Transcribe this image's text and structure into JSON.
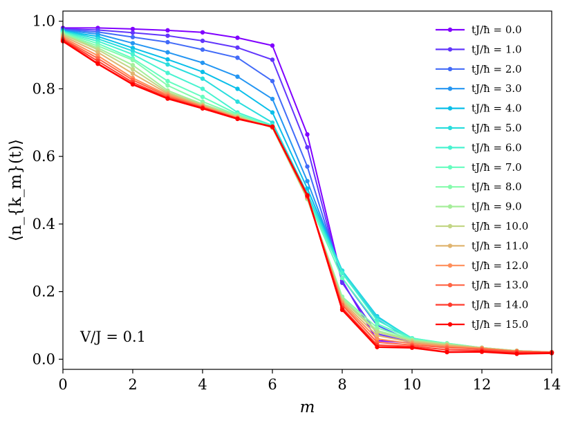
{
  "chart_data": {
    "type": "line",
    "xlabel": "m",
    "ylabel": "⟨n_{k_m}(t)⟩",
    "annotation": "V/J = 0.1",
    "xlim": [
      0,
      14
    ],
    "ylim": [
      -0.03,
      1.03
    ],
    "xticks": [
      "0",
      "2",
      "4",
      "6",
      "8",
      "10",
      "12",
      "14"
    ],
    "yticks": [
      "0.0",
      "0.2",
      "0.4",
      "0.6",
      "0.8",
      "1.0"
    ],
    "grid": false,
    "legend_position": "top-right",
    "x": [
      0,
      1,
      2,
      3,
      4,
      5,
      6,
      7,
      8,
      9,
      10,
      11,
      12,
      13,
      14
    ],
    "series": [
      {
        "name": "tJ/ħ = 0.0",
        "color": "#8000ff",
        "values": [
          0.98,
          0.98,
          0.977,
          0.973,
          0.967,
          0.951,
          0.928,
          0.665,
          0.232,
          0.055,
          0.048,
          0.035,
          0.03,
          0.024,
          0.02
        ]
      },
      {
        "name": "tJ/ħ = 1.0",
        "color": "#6236fc",
        "values": [
          0.977,
          0.974,
          0.966,
          0.957,
          0.942,
          0.922,
          0.886,
          0.627,
          0.226,
          0.075,
          0.05,
          0.038,
          0.03,
          0.024,
          0.02
        ]
      },
      {
        "name": "tJ/ħ = 2.0",
        "color": "#426bf8",
        "values": [
          0.975,
          0.968,
          0.953,
          0.938,
          0.916,
          0.892,
          0.823,
          0.57,
          0.24,
          0.1,
          0.053,
          0.04,
          0.03,
          0.024,
          0.02
        ]
      },
      {
        "name": "tJ/ħ = 3.0",
        "color": "#2596f2",
        "values": [
          0.973,
          0.962,
          0.935,
          0.908,
          0.877,
          0.836,
          0.77,
          0.527,
          0.255,
          0.118,
          0.056,
          0.042,
          0.031,
          0.024,
          0.02
        ]
      },
      {
        "name": "tJ/ħ = 4.0",
        "color": "#0bbfe9",
        "values": [
          0.971,
          0.955,
          0.921,
          0.887,
          0.85,
          0.8,
          0.73,
          0.505,
          0.262,
          0.127,
          0.06,
          0.044,
          0.032,
          0.024,
          0.02
        ]
      },
      {
        "name": "tJ/ħ = 5.0",
        "color": "#2adddd",
        "values": [
          0.97,
          0.948,
          0.912,
          0.872,
          0.83,
          0.762,
          0.7,
          0.49,
          0.262,
          0.124,
          0.062,
          0.046,
          0.033,
          0.024,
          0.02
        ]
      },
      {
        "name": "tJ/ħ = 6.0",
        "color": "#48f3d0",
        "values": [
          0.968,
          0.941,
          0.902,
          0.847,
          0.8,
          0.73,
          0.692,
          0.48,
          0.255,
          0.115,
          0.062,
          0.047,
          0.034,
          0.025,
          0.021
        ]
      },
      {
        "name": "tJ/ħ = 7.0",
        "color": "#66fdbf",
        "values": [
          0.966,
          0.934,
          0.89,
          0.823,
          0.776,
          0.725,
          0.688,
          0.476,
          0.24,
          0.105,
          0.06,
          0.047,
          0.034,
          0.025,
          0.021
        ]
      },
      {
        "name": "tJ/ħ = 8.0",
        "color": "#86fbad",
        "values": [
          0.964,
          0.927,
          0.885,
          0.81,
          0.762,
          0.722,
          0.686,
          0.474,
          0.185,
          0.093,
          0.058,
          0.046,
          0.034,
          0.025,
          0.021
        ]
      },
      {
        "name": "tJ/ħ = 9.0",
        "color": "#a5ee9a",
        "values": [
          0.962,
          0.921,
          0.87,
          0.795,
          0.755,
          0.72,
          0.685,
          0.474,
          0.18,
          0.085,
          0.056,
          0.045,
          0.034,
          0.025,
          0.021
        ]
      },
      {
        "name": "tJ/ħ = 10.0",
        "color": "#c3d686",
        "values": [
          0.96,
          0.916,
          0.858,
          0.79,
          0.752,
          0.718,
          0.685,
          0.476,
          0.175,
          0.08,
          0.054,
          0.043,
          0.034,
          0.025,
          0.021
        ]
      },
      {
        "name": "tJ/ħ = 11.0",
        "color": "#e0b570",
        "values": [
          0.956,
          0.908,
          0.845,
          0.786,
          0.75,
          0.716,
          0.686,
          0.478,
          0.17,
          0.07,
          0.05,
          0.041,
          0.033,
          0.024,
          0.021
        ]
      },
      {
        "name": "tJ/ħ = 12.0",
        "color": "#ff8e5a",
        "values": [
          0.952,
          0.898,
          0.832,
          0.782,
          0.748,
          0.714,
          0.686,
          0.48,
          0.165,
          0.06,
          0.046,
          0.038,
          0.032,
          0.024,
          0.021
        ]
      },
      {
        "name": "tJ/ħ = 13.0",
        "color": "#ff6444",
        "values": [
          0.948,
          0.89,
          0.826,
          0.778,
          0.746,
          0.713,
          0.687,
          0.481,
          0.16,
          0.05,
          0.042,
          0.034,
          0.03,
          0.023,
          0.021
        ]
      },
      {
        "name": "tJ/ħ = 14.0",
        "color": "#ff3a2c",
        "values": [
          0.945,
          0.882,
          0.819,
          0.774,
          0.744,
          0.712,
          0.688,
          0.483,
          0.152,
          0.042,
          0.038,
          0.028,
          0.026,
          0.02,
          0.02
        ]
      },
      {
        "name": "tJ/ħ = 15.0",
        "color": "#ff0000",
        "values": [
          0.941,
          0.874,
          0.813,
          0.771,
          0.742,
          0.711,
          0.688,
          0.485,
          0.146,
          0.036,
          0.034,
          0.021,
          0.022,
          0.016,
          0.018
        ]
      }
    ]
  }
}
